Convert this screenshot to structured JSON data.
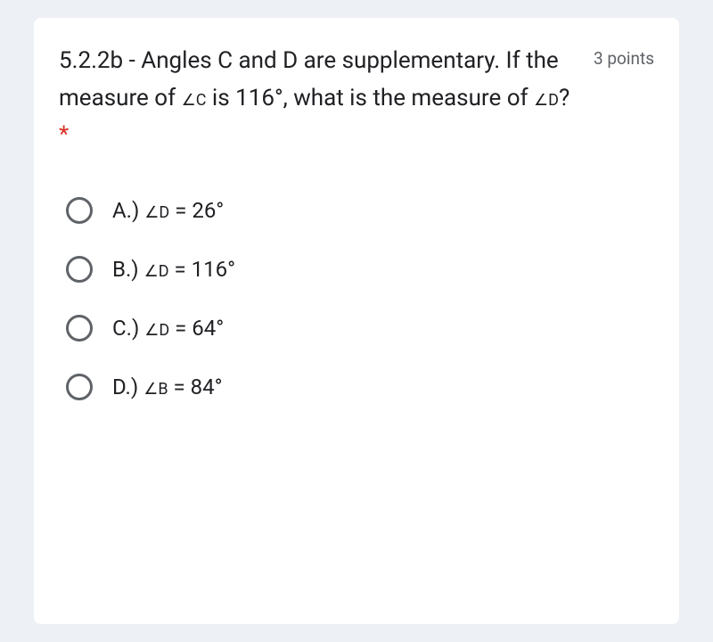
{
  "card": {
    "question_prefix": "5.2.2b - Angles C and D are supplementary. If the measure of ",
    "angle_c": "∠C",
    "question_mid": " is 116°, what is the measure of ",
    "angle_d": "∠D",
    "question_suffix": "?",
    "required_marker": " *",
    "points_label": "3 points",
    "options": [
      {
        "letter": "A.) ",
        "angle": "∠D",
        "value": " = 26°"
      },
      {
        "letter": "B.) ",
        "angle": "∠D",
        "value": " = 116°"
      },
      {
        "letter": "C.) ",
        "angle": "∠D",
        "value": " = 64°"
      },
      {
        "letter": "D.) ",
        "angle": "∠B",
        "value": " = 84°"
      }
    ],
    "colors": {
      "background": "#edf0f4",
      "card_bg": "#ffffff",
      "text_primary": "#202124",
      "text_secondary": "#5f6368",
      "required": "#d93025",
      "radio_border": "#5f6368"
    }
  }
}
